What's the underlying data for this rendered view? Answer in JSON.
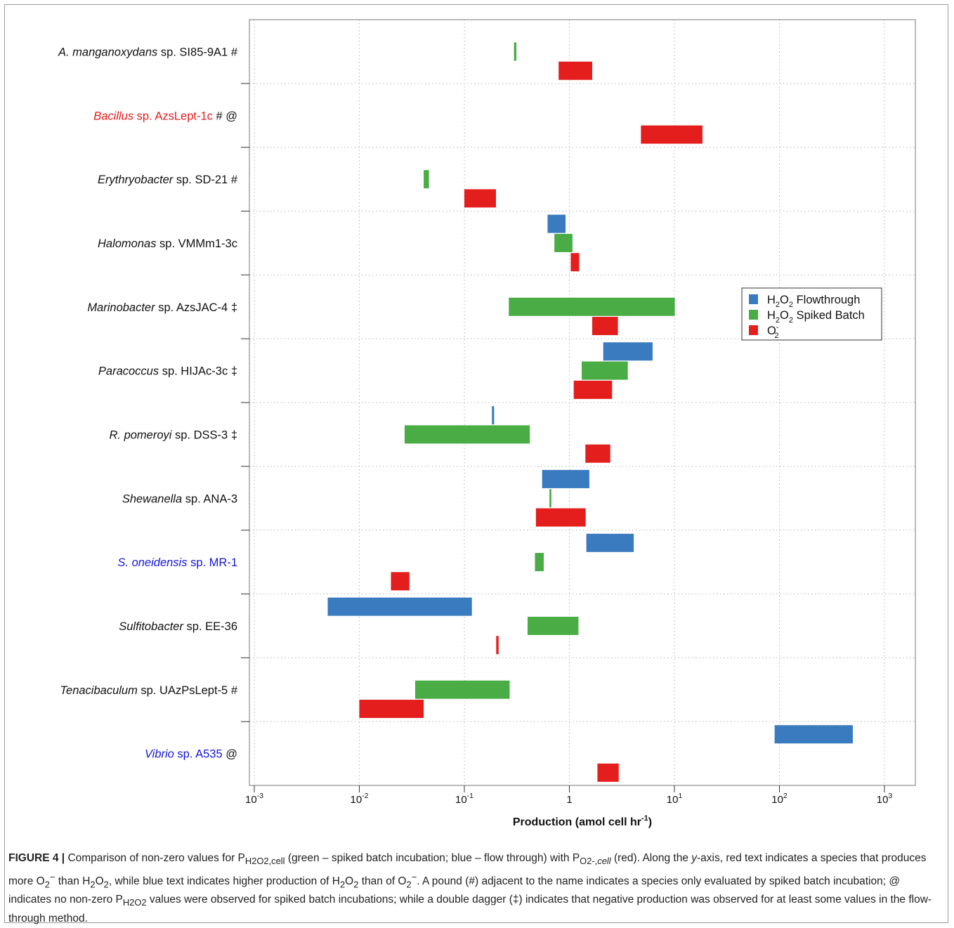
{
  "chart_data": {
    "type": "bar",
    "orientation": "horizontal-range",
    "x_scale": "log",
    "xlim": [
      0.001,
      1000
    ],
    "x_ticks": [
      {
        "base": "10",
        "exp": "-3"
      },
      {
        "base": "10",
        "exp": "-2"
      },
      {
        "base": "10",
        "exp": "-1"
      },
      {
        "base": "1",
        "exp": ""
      },
      {
        "base": "10",
        "exp": "1"
      },
      {
        "base": "10",
        "exp": "2"
      },
      {
        "base": "10",
        "exp": "3"
      }
    ],
    "xlabel": {
      "main": "Production (amol cell hr",
      "sup": "-1",
      "end": ")"
    },
    "grid": true,
    "legend_position": "right",
    "legend": [
      {
        "key": "flow",
        "main": "H",
        "sub1": "2",
        "mid": "O",
        "sub2": "2",
        "rest": " Flowthrough",
        "color": "#3a7bbf"
      },
      {
        "key": "spiked",
        "main": "H",
        "sub1": "2",
        "mid": "O",
        "sub2": "2",
        "rest": " Spiked Batch",
        "color": "#49ac44"
      },
      {
        "key": "o2",
        "main": "O",
        "sub1": "2",
        "sup": "-",
        "rest": "",
        "color": "#e41d1d"
      }
    ],
    "categories": [
      {
        "italic": "A. manganoxydans",
        "rest": " sp. SI85-9A1",
        "mark": " #",
        "color": "#111111"
      },
      {
        "italic": "Bacillus",
        "rest": " sp. AzsLept-1c",
        "mark": " # @",
        "color": "#e41d1d"
      },
      {
        "italic": "Erythryobacter",
        "rest": " sp. SD-21",
        "mark": " #",
        "color": "#111111"
      },
      {
        "italic": "Halomonas",
        "rest": " sp. VMMm1-3c",
        "mark": "",
        "color": "#111111"
      },
      {
        "italic": "Marinobacter",
        "rest": " sp. AzsJAC-4",
        "mark": " ‡",
        "color": "#111111"
      },
      {
        "italic": "Paracoccus",
        "rest": " sp. HIJAc-3c",
        "mark": " ‡",
        "color": "#111111"
      },
      {
        "italic": "R. pomeroyi",
        "rest": " sp. DSS-3",
        "mark": " ‡",
        "color": "#111111"
      },
      {
        "italic": "Shewanella",
        "rest": " sp. ANA-3",
        "mark": "",
        "color": "#111111"
      },
      {
        "italic": "S. oneidensis",
        "rest": " sp. MR-1",
        "mark": "",
        "color": "#1515dd"
      },
      {
        "italic": "Sulfitobacter",
        "rest": " sp. EE-36",
        "mark": "",
        "color": "#111111"
      },
      {
        "italic": "Tenacibaculum",
        "rest": " sp. UAzPsLept-5",
        "mark": " #",
        "color": "#111111"
      },
      {
        "italic": "Vibrio",
        "rest": " sp. A535",
        "mark": " @",
        "color": "#1515dd"
      }
    ],
    "series": [
      {
        "key": "flow",
        "ranges": [
          null,
          null,
          null,
          [
            0.62,
            0.92
          ],
          null,
          [
            2.1,
            6.2
          ],
          [
            0.183,
            0.192
          ],
          [
            0.55,
            1.55
          ],
          [
            1.45,
            4.1
          ],
          [
            0.005,
            0.118
          ],
          null,
          [
            90,
            500
          ]
        ]
      },
      {
        "key": "spiked",
        "ranges": [
          [
            0.297,
            0.313
          ],
          null,
          [
            0.041,
            0.046
          ],
          [
            0.72,
            1.07
          ],
          [
            0.265,
            10.1
          ],
          [
            1.31,
            3.6
          ],
          [
            0.027,
            0.42
          ],
          [
            0.646,
            0.673
          ],
          [
            0.47,
            0.57
          ],
          [
            0.4,
            1.22
          ],
          [
            0.034,
            0.27
          ],
          null
        ]
      },
      {
        "key": "o2",
        "ranges": [
          [
            0.79,
            1.65
          ],
          [
            4.8,
            18.5
          ],
          [
            0.1,
            0.2
          ],
          [
            1.03,
            1.24
          ],
          [
            1.65,
            2.9
          ],
          [
            1.1,
            2.55
          ],
          [
            1.42,
            2.45
          ],
          [
            0.48,
            1.43
          ],
          [
            0.02,
            0.03
          ],
          [
            0.201,
            0.212
          ],
          [
            0.01,
            0.041
          ],
          [
            1.85,
            2.95
          ]
        ]
      }
    ]
  },
  "caption": {
    "label": "FIGURE 4 |",
    "p1": " Comparison of non-zero values for P",
    "p1_sub": "H2O2,cell",
    "p2": " (green – spiked batch incubation; blue – flow through) with P",
    "p2_sub_main": "O2-,",
    "p2_sub_ital": "cell",
    "p3": " (red). Along the ",
    "p3_ital": "y",
    "p4": "-axis, red text indicates a species that produces more O",
    "p4_sub": "2",
    "p4_sup": "−",
    "p5": " than H",
    "p5_sub1": "2",
    "p5_mid": "O",
    "p5_sub2": "2",
    "p6": ", while blue text indicates higher production of H",
    "p6_sub1": "2",
    "p6_mid": "O",
    "p6_sub2": "2",
    "p7": " than of O",
    "p7_sub": "2",
    "p7_sup": "−",
    "p8": ". A pound (#) adjacent to the name indicates a species only evaluated by spiked batch incubation; @ indicates no non-zero P",
    "p8_sub": "H2O2",
    "p9": " values were observed for spiked batch incubations; while a double dagger (‡) indicates that negative production was observed for at least some values in the flow-through method."
  }
}
